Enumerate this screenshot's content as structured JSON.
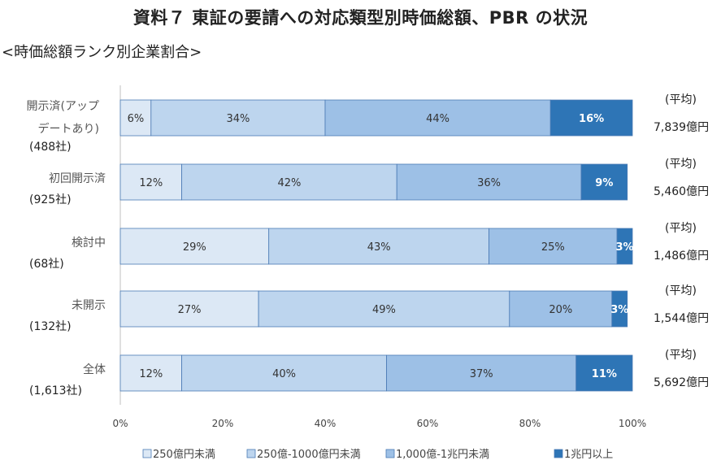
{
  "header": {
    "title": "資料７ 東証の要請への対応類型別時価総額、PBR の状況",
    "subtitle": "<時価総額ランク別企業割合>"
  },
  "chart_data": {
    "type": "bar",
    "orientation": "horizontal",
    "stacked": true,
    "percent": true,
    "categories": [
      {
        "label_line1": "開示済(アップ",
        "label_line2": "デートあり)",
        "count": "(488社)",
        "avg_label": "(平均)",
        "avg_value": "7,839億円"
      },
      {
        "label_line1": "初回開示済",
        "label_line2": "",
        "count": "(925社)",
        "avg_label": "(平均)",
        "avg_value": "5,460億円"
      },
      {
        "label_line1": "検討中",
        "label_line2": "",
        "count": "(68社)",
        "avg_label": "(平均)",
        "avg_value": "1,486億円"
      },
      {
        "label_line1": "未開示",
        "label_line2": "",
        "count": "(132社)",
        "avg_label": "(平均)",
        "avg_value": "1,544億円"
      },
      {
        "label_line1": "全体",
        "label_line2": "",
        "count": "(1,613社)",
        "avg_label": "(平均)",
        "avg_value": "5,692億円"
      }
    ],
    "series": [
      {
        "name": "250億円未満",
        "color": "#dce8f5",
        "values": [
          6,
          12,
          29,
          27,
          12
        ],
        "labels": [
          "6%",
          "12%",
          "29%",
          "27%",
          "12%"
        ]
      },
      {
        "name": "250億-1000億円未満",
        "color": "#bdd5ee",
        "values": [
          34,
          42,
          43,
          49,
          40
        ],
        "labels": [
          "34%",
          "42%",
          "43%",
          "49%",
          "40%"
        ]
      },
      {
        "name": "1,000億-1兆円未満",
        "color": "#9dc0e6",
        "values": [
          44,
          36,
          25,
          20,
          37
        ],
        "labels": [
          "44%",
          "36%",
          "25%",
          "20%",
          "37%"
        ]
      },
      {
        "name": "1兆円以上",
        "color": "#2e75b6",
        "values": [
          16,
          9,
          3,
          3,
          11
        ],
        "labels": [
          "16%",
          "9%",
          "3%",
          "3%",
          "11%"
        ]
      }
    ],
    "xlim": [
      0,
      100
    ],
    "x_ticks": [
      "0%",
      "20%",
      "40%",
      "60%",
      "80%",
      "100%"
    ],
    "legend_position": "bottom",
    "grid": false
  }
}
